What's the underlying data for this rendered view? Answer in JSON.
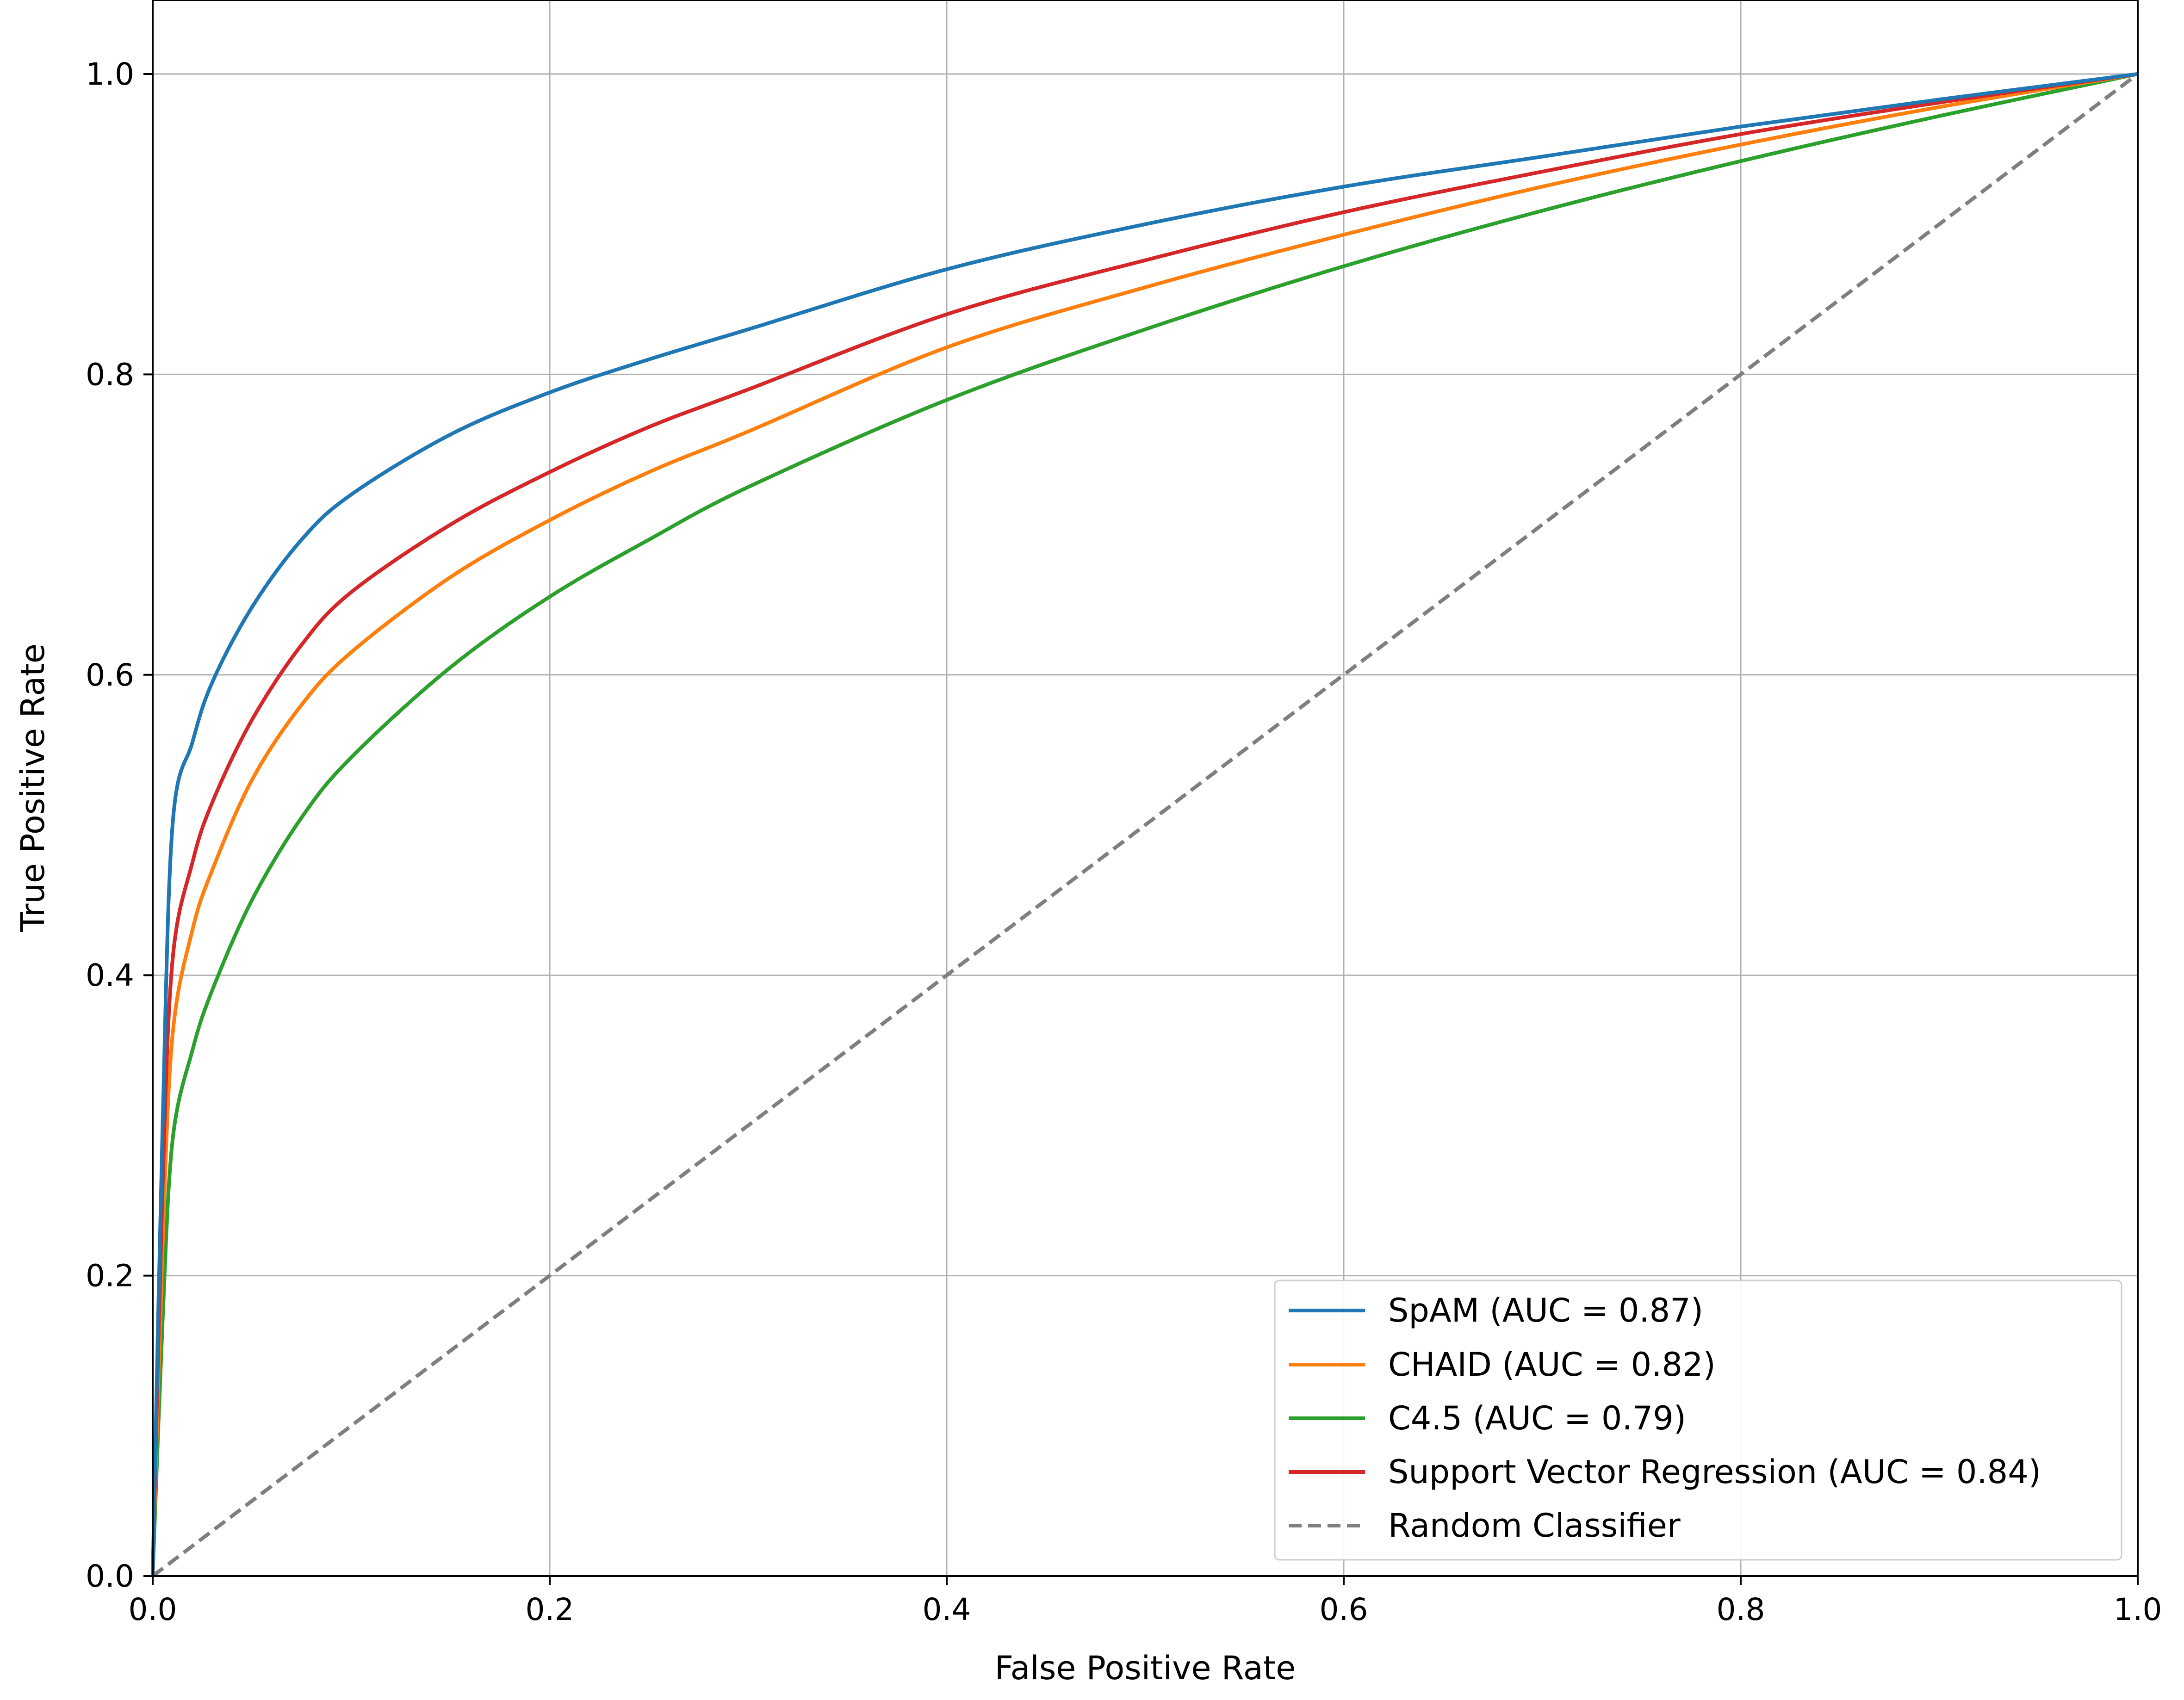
{
  "chart_data": {
    "type": "line",
    "title": "",
    "xlabel": "False Positive Rate",
    "ylabel": "True Positive Rate",
    "xlim": [
      0.0,
      1.0
    ],
    "ylim": [
      0.0,
      1.0
    ],
    "xticks": [
      "0.0",
      "0.2",
      "0.4",
      "0.6",
      "0.8",
      "1.0"
    ],
    "yticks": [
      "0.0",
      "0.2",
      "0.4",
      "0.6",
      "0.8",
      "1.0"
    ],
    "grid": true,
    "legend_position": "lower-right",
    "series": [
      {
        "name": "SpAM (AUC = 0.87)",
        "color": "#1f77b4",
        "style": "solid",
        "x": [
          0.0,
          0.005,
          0.01,
          0.02,
          0.03,
          0.05,
          0.075,
          0.1,
          0.15,
          0.2,
          0.25,
          0.3,
          0.4,
          0.5,
          0.6,
          0.7,
          0.8,
          0.9,
          1.0
        ],
        "y": [
          0.0,
          0.3,
          0.5,
          0.555,
          0.595,
          0.645,
          0.69,
          0.72,
          0.76,
          0.788,
          0.81,
          0.83,
          0.87,
          0.9,
          0.925,
          0.945,
          0.965,
          0.983,
          1.0
        ]
      },
      {
        "name": "CHAID (AUC = 0.82)",
        "color": "#ff7f0e",
        "style": "solid",
        "x": [
          0.0,
          0.005,
          0.01,
          0.02,
          0.03,
          0.05,
          0.075,
          0.1,
          0.15,
          0.2,
          0.25,
          0.3,
          0.4,
          0.5,
          0.6,
          0.7,
          0.8,
          0.9,
          1.0
        ],
        "y": [
          0.0,
          0.22,
          0.36,
          0.43,
          0.47,
          0.53,
          0.58,
          0.615,
          0.665,
          0.703,
          0.735,
          0.762,
          0.818,
          0.858,
          0.893,
          0.925,
          0.953,
          0.978,
          1.0
        ]
      },
      {
        "name": "C4.5 (AUC = 0.79)",
        "color": "#2ca02c",
        "style": "solid",
        "x": [
          0.0,
          0.005,
          0.01,
          0.02,
          0.03,
          0.05,
          0.075,
          0.1,
          0.15,
          0.2,
          0.25,
          0.3,
          0.4,
          0.5,
          0.6,
          0.7,
          0.8,
          0.9,
          1.0
        ],
        "y": [
          0.0,
          0.17,
          0.29,
          0.35,
          0.39,
          0.45,
          0.505,
          0.545,
          0.605,
          0.652,
          0.69,
          0.725,
          0.783,
          0.83,
          0.872,
          0.909,
          0.942,
          0.972,
          1.0
        ]
      },
      {
        "name": "Support Vector Regression (AUC = 0.84)",
        "color": "#d62728",
        "style": "solid",
        "x": [
          0.0,
          0.005,
          0.01,
          0.02,
          0.03,
          0.05,
          0.075,
          0.1,
          0.15,
          0.2,
          0.25,
          0.3,
          0.4,
          0.5,
          0.6,
          0.7,
          0.8,
          0.9,
          1.0
        ],
        "y": [
          0.0,
          0.26,
          0.41,
          0.475,
          0.515,
          0.57,
          0.62,
          0.655,
          0.7,
          0.735,
          0.765,
          0.79,
          0.84,
          0.876,
          0.908,
          0.935,
          0.96,
          0.981,
          1.0
        ]
      },
      {
        "name": "Random Classifier",
        "color": "#7f7f7f",
        "style": "dashed",
        "x": [
          0.0,
          1.0
        ],
        "y": [
          0.0,
          1.0
        ]
      }
    ]
  }
}
